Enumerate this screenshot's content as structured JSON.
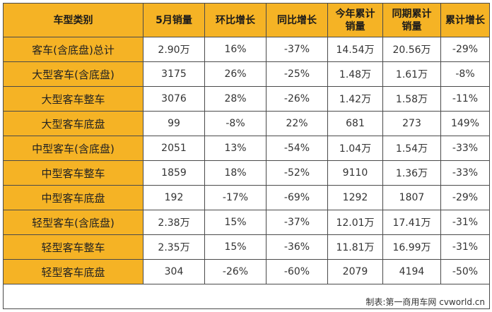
{
  "headers": [
    "车型类别",
    "5月销量",
    "环比增长",
    "同比增长",
    "今年累计\n销量",
    "同期累计\n销量",
    "累计增长"
  ],
  "rows": [
    [
      "客车(含底盘)总计",
      "2.90万",
      "16%",
      "-37%",
      "14.54万",
      "20.56万",
      "-29%"
    ],
    [
      "大型客车(含底盘)",
      "3175",
      "26%",
      "-25%",
      "1.48万",
      "1.61万",
      "-8%"
    ],
    [
      "大型客车整车",
      "3076",
      "28%",
      "-26%",
      "1.42万",
      "1.58万",
      "-11%"
    ],
    [
      "大型客车底盘",
      "99",
      "-8%",
      "22%",
      "681",
      "273",
      "149%"
    ],
    [
      "中型客车(含底盘)",
      "2051",
      "13%",
      "-54%",
      "1.04万",
      "1.54万",
      "-33%"
    ],
    [
      "中型客车整车",
      "1859",
      "18%",
      "-52%",
      "9110",
      "1.36万",
      "-33%"
    ],
    [
      "中型客车底盘",
      "192",
      "-17%",
      "-69%",
      "1292",
      "1807",
      "-29%"
    ],
    [
      "轻型客车(含底盘)",
      "2.38万",
      "15%",
      "-37%",
      "12.01万",
      "17.41万",
      "-31%"
    ],
    [
      "轻型客车整车",
      "2.35万",
      "15%",
      "-36%",
      "11.81万",
      "16.99万",
      "-31%"
    ],
    [
      "轻型客车底盘",
      "304",
      "-26%",
      "-60%",
      "2079",
      "4194",
      "-50%"
    ]
  ],
  "footer": "制表:第一商用车网 cvworld.cn",
  "colors": {
    "header_bg": "#f5b325",
    "category_bg": "#f5b325",
    "border": "#4a4a4a"
  }
}
